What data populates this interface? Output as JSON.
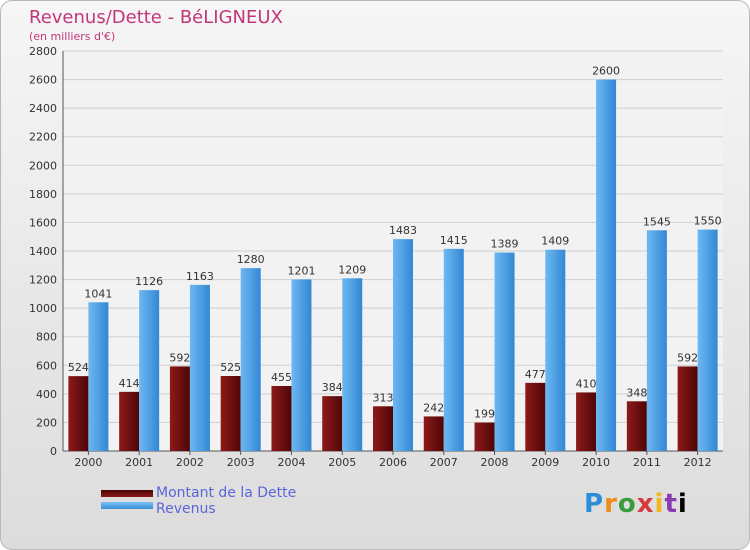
{
  "header": {
    "title": "Revenus/Dette - BéLIGNEUX",
    "subtitle": "(en milliers d'€)"
  },
  "legend": {
    "items": [
      {
        "label": "Montant de la Dette",
        "color": "#6b0c0c"
      },
      {
        "label": "Revenus",
        "color": "#4ba3e8"
      }
    ],
    "placement": "bottom-left"
  },
  "logo": {
    "text": "Proxiti"
  },
  "chart_data": {
    "type": "bar",
    "title": "Revenus/Dette - BéLIGNEUX",
    "subtitle": "(en milliers d'€)",
    "categories": [
      "2000",
      "2001",
      "2002",
      "2003",
      "2004",
      "2005",
      "2006",
      "2007",
      "2008",
      "2009",
      "2010",
      "2011",
      "2012"
    ],
    "series": [
      {
        "name": "Montant de la Dette",
        "color": "#6b0c0c",
        "values": [
          524,
          414,
          592,
          525,
          455,
          384,
          313,
          242,
          199,
          477,
          410,
          348,
          592
        ]
      },
      {
        "name": "Revenus",
        "color": "#4ba3e8",
        "values": [
          1041,
          1126,
          1163,
          1280,
          1201,
          1209,
          1483,
          1415,
          1389,
          1409,
          2600,
          1545,
          1550
        ]
      }
    ],
    "ylim": [
      0,
      2800
    ],
    "yticks": [
      0,
      200,
      400,
      600,
      800,
      1000,
      1200,
      1400,
      1600,
      1800,
      2000,
      2200,
      2400,
      2600,
      2800
    ],
    "grid": true,
    "legend": "bottom-left"
  }
}
